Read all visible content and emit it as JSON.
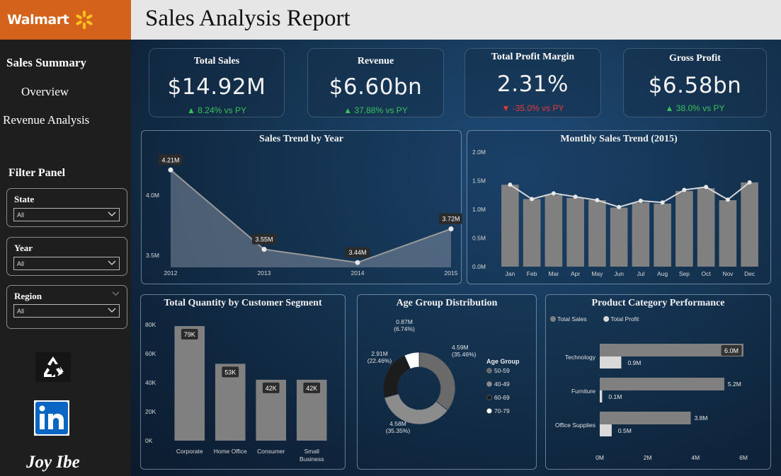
{
  "brand": {
    "name": "Walmart",
    "accent": "#d4621a",
    "spark_color": "#ffc220"
  },
  "header": {
    "title": "Sales Analysis Report"
  },
  "nav": {
    "sales_summary": "Sales Summary",
    "overview": "Overview",
    "revenue_analysis": "Revenue Analysis"
  },
  "filters": {
    "title": "Filter Panel",
    "state": {
      "label": "State",
      "value": "All"
    },
    "year": {
      "label": "Year",
      "value": "All"
    },
    "region": {
      "label": "Region",
      "value": "All"
    }
  },
  "icons": {
    "recycle": "recycle-icon",
    "linkedin": "linkedin-icon"
  },
  "author": "Joy Ibe",
  "kpis": [
    {
      "title": "Total Sales",
      "value": "$14.92M",
      "delta": "8.24% vs PY",
      "direction": "up"
    },
    {
      "title": "Revenue",
      "value": "$6.60bn",
      "delta": "37.88% vs PY",
      "direction": "up"
    },
    {
      "title": "Total Profit Margin",
      "value": "2.31%",
      "delta": "-35.0% vs PY",
      "direction": "down"
    },
    {
      "title": "Gross Profit",
      "value": "$6.58bn",
      "delta": "38.0% vs PY",
      "direction": "up"
    }
  ],
  "colors": {
    "bar": "#808080",
    "line": "#d9d9d9",
    "up": "#39c05b",
    "down": "#e8373b"
  },
  "chart_data": [
    {
      "id": "sales-trend",
      "type": "area",
      "title": "Sales Trend by Year",
      "categories": [
        "2012",
        "2013",
        "2014",
        "2015"
      ],
      "values": [
        4.21,
        3.55,
        3.44,
        3.72
      ],
      "labels": [
        "4.21M",
        "3.55M",
        "3.44M",
        "3.72M"
      ],
      "yticks": [
        "3.5M",
        "4.0M"
      ],
      "ytick_values": [
        3.5,
        4.0
      ],
      "ylim": [
        3.4,
        4.3
      ]
    },
    {
      "id": "monthly-trend",
      "type": "bar",
      "title": "Monthly Sales Trend (2015)",
      "categories": [
        "Jan",
        "Feb",
        "Mar",
        "Apr",
        "May",
        "Jun",
        "Jul",
        "Aug",
        "Sep",
        "Oct",
        "Nov",
        "Dec"
      ],
      "series": [
        {
          "name": "bars",
          "values": [
            1.43,
            1.18,
            1.25,
            1.2,
            1.16,
            1.03,
            1.12,
            1.1,
            1.32,
            1.37,
            1.16,
            1.47
          ]
        },
        {
          "name": "line",
          "values": [
            1.43,
            1.18,
            1.28,
            1.22,
            1.16,
            1.04,
            1.15,
            1.12,
            1.34,
            1.39,
            1.17,
            1.47
          ]
        }
      ],
      "yticks": [
        "0.0M",
        "0.5M",
        "1.0M",
        "1.5M",
        "2.0M"
      ],
      "ytick_values": [
        0,
        0.5,
        1.0,
        1.5,
        2.0
      ],
      "ylim": [
        0,
        2.0
      ]
    },
    {
      "id": "segment-quantity",
      "type": "bar",
      "title": "Total Quantity by Customer Segment",
      "categories": [
        "Corporate",
        "Home Office",
        "Consumer",
        "Small Business"
      ],
      "values": [
        79,
        53,
        42,
        42
      ],
      "labels": [
        "79K",
        "53K",
        "42K",
        "42K"
      ],
      "yticks": [
        "0K",
        "20K",
        "40K",
        "60K",
        "80K"
      ],
      "ytick_values": [
        0,
        20,
        40,
        60,
        80
      ],
      "ylim": [
        0,
        80
      ]
    },
    {
      "id": "age-distribution",
      "type": "pie",
      "title": "Age Group Distribution",
      "legend_title": "Age Group",
      "slices": [
        {
          "name": "50-59",
          "value": 35.46,
          "label": "4.59M",
          "pct": "(35.46%)",
          "color": "#6a6a6a"
        },
        {
          "name": "40-49",
          "value": 35.35,
          "label": "4.58M",
          "pct": "(35.35%)",
          "color": "#8c8c8c"
        },
        {
          "name": "60-69",
          "value": 22.46,
          "label": "2.91M",
          "pct": "(22.46%)",
          "color": "#1c1c1c"
        },
        {
          "name": "70-79",
          "value": 6.74,
          "label": "0.87M",
          "pct": "(6.74%)",
          "color": "#ffffff"
        }
      ]
    },
    {
      "id": "category-performance",
      "type": "bar",
      "title": "Product Category Performance",
      "categories": [
        "Technology",
        "Furniture",
        "Office Supplies"
      ],
      "series": [
        {
          "name": "Total Sales",
          "values": [
            6.0,
            5.2,
            3.8
          ],
          "labels": [
            "6.0M",
            "5.2M",
            "3.8M"
          ],
          "color": "#808080"
        },
        {
          "name": "Total Profit",
          "values": [
            0.9,
            0.1,
            0.5
          ],
          "labels": [
            "0.9M",
            "0.1M",
            "0.5M"
          ],
          "color": "#d9d9d9"
        }
      ],
      "xticks": [
        "0M",
        "2M",
        "4M",
        "6M"
      ],
      "xtick_values": [
        0,
        2,
        4,
        6
      ],
      "xlim": [
        0,
        6
      ]
    }
  ]
}
